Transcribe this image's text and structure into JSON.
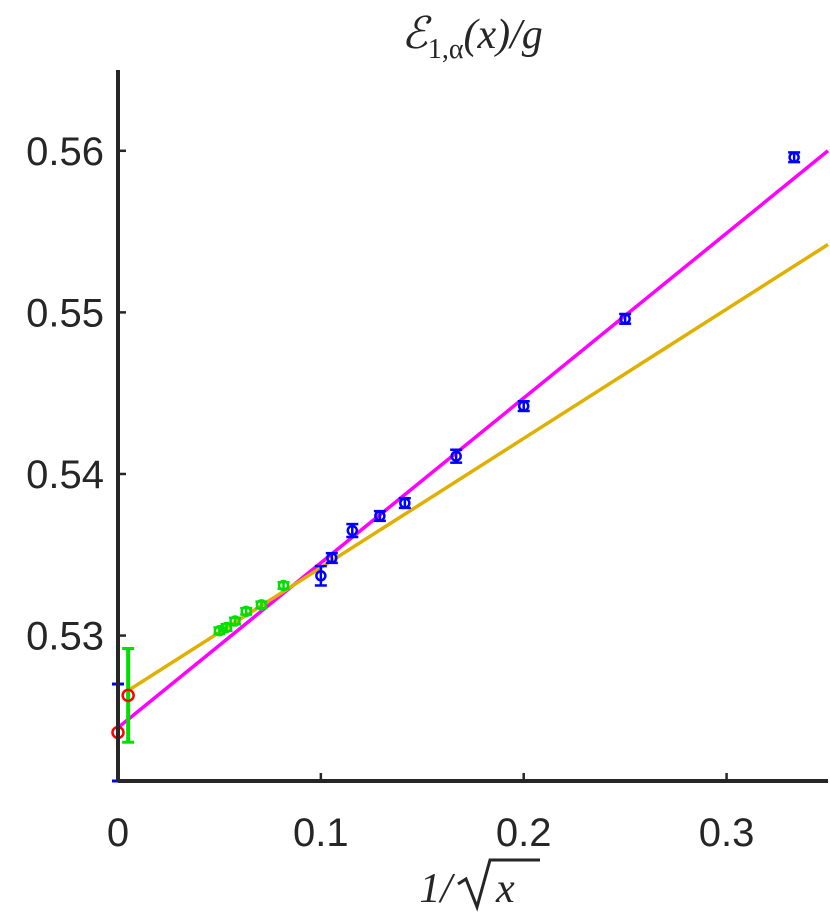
{
  "chart_data": {
    "type": "scatter",
    "title_text": {
      "main": "ℰ",
      "sub": "1,α",
      "rest": "(x)/g"
    },
    "xlabel_text": {
      "prefix": "1/",
      "radicand": "x"
    },
    "xlim": [
      0,
      0.35
    ],
    "ylim": [
      0.521,
      0.565
    ],
    "x_ticks": [
      {
        "value": 0,
        "label": "0"
      },
      {
        "value": 0.1,
        "label": "0.1"
      },
      {
        "value": 0.2,
        "label": "0.2"
      },
      {
        "value": 0.3,
        "label": "0.3"
      }
    ],
    "y_ticks": [
      {
        "value": 0.53,
        "label": "0.53"
      },
      {
        "value": 0.54,
        "label": "0.54"
      },
      {
        "value": 0.55,
        "label": "0.55"
      },
      {
        "value": 0.56,
        "label": "0.56"
      }
    ],
    "grid": false,
    "series": [
      {
        "color": "#0000ff",
        "marker": "circle",
        "points": [
          {
            "x": 0.3333,
            "y": 0.5596,
            "err": 0.0003
          },
          {
            "x": 0.25,
            "y": 0.5496,
            "err": 0.0003
          },
          {
            "x": 0.2,
            "y": 0.5442,
            "err": 0.0003
          },
          {
            "x": 0.1667,
            "y": 0.5411,
            "err": 0.0004
          },
          {
            "x": 0.1414,
            "y": 0.5382,
            "err": 0.0003
          },
          {
            "x": 0.1291,
            "y": 0.5374,
            "err": 0.0003
          },
          {
            "x": 0.1155,
            "y": 0.5365,
            "err": 0.0004
          },
          {
            "x": 0.1054,
            "y": 0.5348,
            "err": 0.0003
          },
          {
            "x": 0.1,
            "y": 0.5337,
            "err": 0.0006
          }
        ]
      },
      {
        "color": "#00e000",
        "marker": "circle",
        "points": [
          {
            "x": 0.0816,
            "y": 0.5331,
            "err": 0.0002
          },
          {
            "x": 0.0707,
            "y": 0.5319,
            "err": 0.0002
          },
          {
            "x": 0.0632,
            "y": 0.5315,
            "err": 0.0002
          },
          {
            "x": 0.0577,
            "y": 0.5309,
            "err": 0.0002
          },
          {
            "x": 0.0535,
            "y": 0.5305,
            "err": 0.0002
          },
          {
            "x": 0.05,
            "y": 0.5303,
            "err": 0.0002
          }
        ]
      }
    ],
    "fits": [
      {
        "color": "#ff00ff",
        "x": [
          0,
          0.35
        ],
        "y": [
          0.5243,
          0.56
        ]
      },
      {
        "color": "#e0b000",
        "x": [
          0.005,
          0.35
        ],
        "y": [
          0.5266,
          0.5542
        ]
      }
    ],
    "extrapolations": [
      {
        "x": 0.0,
        "y": 0.524,
        "err_low": 0.521,
        "err_high": 0.527,
        "marker_color": "#ff0000",
        "bar_color": "#0000ff"
      },
      {
        "x": 0.005,
        "y": 0.5263,
        "err_low": 0.5234,
        "err_high": 0.5292,
        "marker_color": "#ff0000",
        "bar_color": "#00e000"
      }
    ]
  }
}
